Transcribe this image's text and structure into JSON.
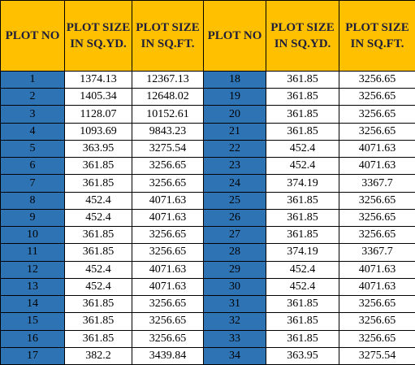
{
  "headers": {
    "plot_no": "PLOT NO",
    "size_yd_1": "PLOT SIZE",
    "size_yd_2": "IN SQ.YD.",
    "size_ft_1": "PLOT SIZE",
    "size_ft_2": "IN SQ.FT."
  },
  "rows": [
    {
      "l_no": "1",
      "l_yd": "1374.13",
      "l_ft": "12367.13",
      "r_no": "18",
      "r_yd": "361.85",
      "r_ft": "3256.65"
    },
    {
      "l_no": "2",
      "l_yd": "1405.34",
      "l_ft": "12648.02",
      "r_no": "19",
      "r_yd": "361.85",
      "r_ft": "3256.65"
    },
    {
      "l_no": "3",
      "l_yd": "1128.07",
      "l_ft": "10152.61",
      "r_no": "20",
      "r_yd": "361.85",
      "r_ft": "3256.65"
    },
    {
      "l_no": "4",
      "l_yd": "1093.69",
      "l_ft": "9843.23",
      "r_no": "21",
      "r_yd": "361.85",
      "r_ft": "3256.65"
    },
    {
      "l_no": "5",
      "l_yd": "363.95",
      "l_ft": "3275.54",
      "r_no": "22",
      "r_yd": "452.4",
      "r_ft": "4071.63"
    },
    {
      "l_no": "6",
      "l_yd": "361.85",
      "l_ft": "3256.65",
      "r_no": "23",
      "r_yd": "452.4",
      "r_ft": "4071.63"
    },
    {
      "l_no": "7",
      "l_yd": "361.85",
      "l_ft": "3256.65",
      "r_no": "24",
      "r_yd": "374.19",
      "r_ft": "3367.7"
    },
    {
      "l_no": "8",
      "l_yd": "452.4",
      "l_ft": "4071.63",
      "r_no": "25",
      "r_yd": "361.85",
      "r_ft": "3256.65"
    },
    {
      "l_no": "9",
      "l_yd": "452.4",
      "l_ft": "4071.63",
      "r_no": "26",
      "r_yd": "361.85",
      "r_ft": "3256.65"
    },
    {
      "l_no": "10",
      "l_yd": "361.85",
      "l_ft": "3256.65",
      "r_no": "27",
      "r_yd": "361.85",
      "r_ft": "3256.65"
    },
    {
      "l_no": "11",
      "l_yd": "361.85",
      "l_ft": "3256.65",
      "r_no": "28",
      "r_yd": "374.19",
      "r_ft": "3367.7"
    },
    {
      "l_no": "12",
      "l_yd": "452.4",
      "l_ft": "4071.63",
      "r_no": "29",
      "r_yd": "452.4",
      "r_ft": "4071.63"
    },
    {
      "l_no": "13",
      "l_yd": "452.4",
      "l_ft": "4071.63",
      "r_no": "30",
      "r_yd": "452.4",
      "r_ft": "4071.63"
    },
    {
      "l_no": "14",
      "l_yd": "361.85",
      "l_ft": "3256.65",
      "r_no": "31",
      "r_yd": "361.85",
      "r_ft": "3256.65"
    },
    {
      "l_no": "15",
      "l_yd": "361.85",
      "l_ft": "3256.65",
      "r_no": "32",
      "r_yd": "361.85",
      "r_ft": "3256.65"
    },
    {
      "l_no": "16",
      "l_yd": "361.85",
      "l_ft": "3256.65",
      "r_no": "33",
      "r_yd": "361.85",
      "r_ft": "3256.65"
    },
    {
      "l_no": "17",
      "l_yd": "382.2",
      "l_ft": "3439.84",
      "r_no": "34",
      "r_yd": "363.95",
      "r_ft": "3275.54"
    }
  ],
  "colors": {
    "header_bg": "#ffc000",
    "plot_no_bg": "#2e74b5"
  }
}
